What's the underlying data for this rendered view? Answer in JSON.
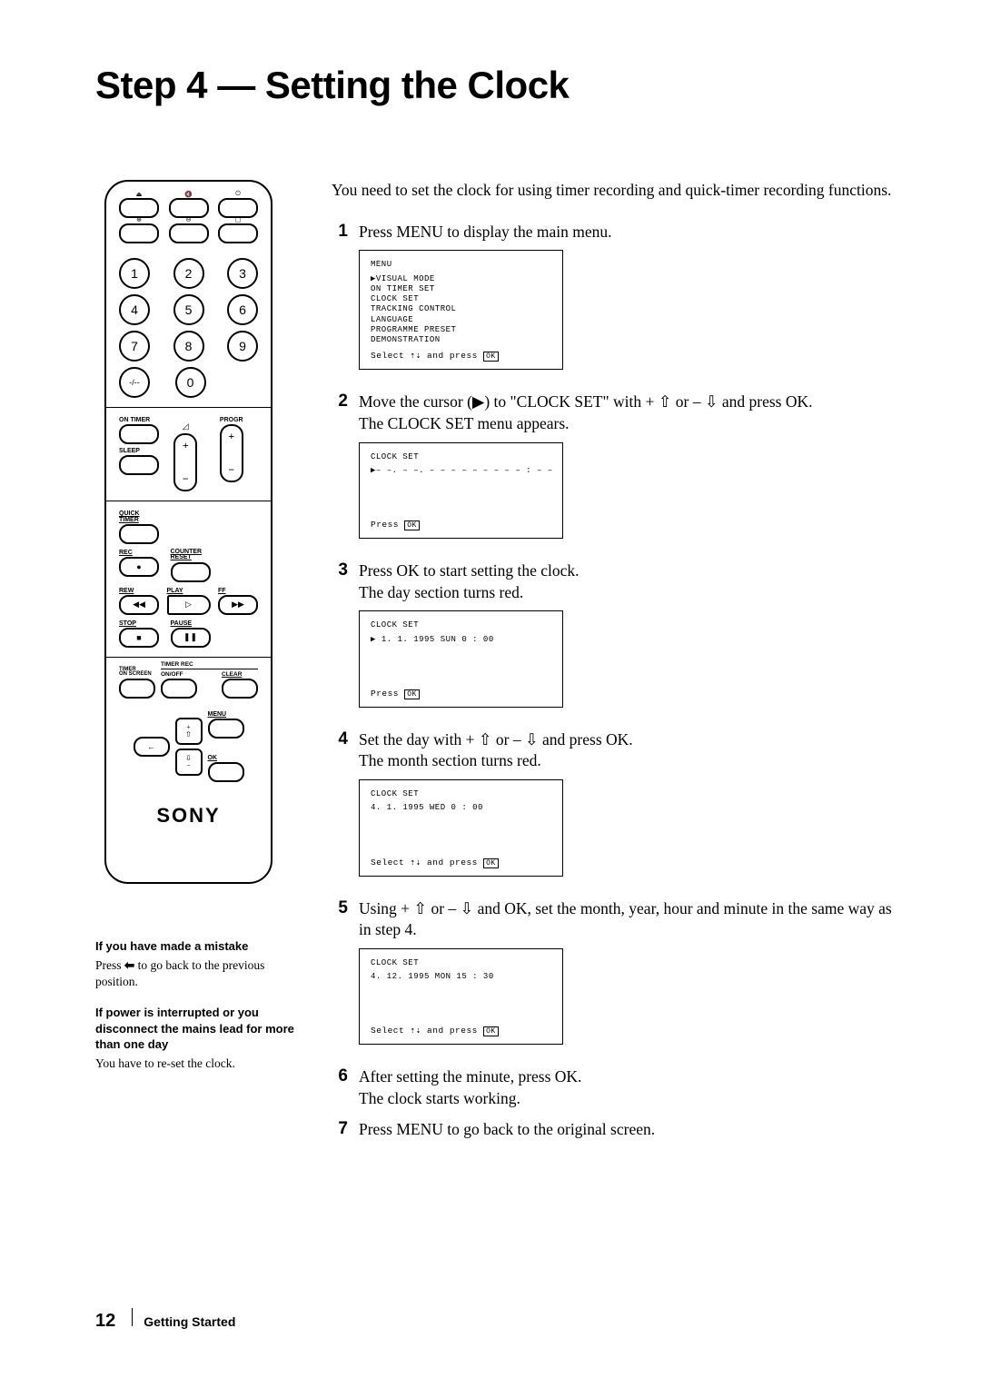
{
  "title": "Step 4 — Setting the Clock",
  "intro": "You need to set the clock for using timer recording and quick-timer recording functions.",
  "remote": {
    "numpad": [
      "1",
      "2",
      "3",
      "4",
      "5",
      "6",
      "7",
      "8",
      "9",
      "-/--",
      "0"
    ],
    "labels": {
      "on_timer": "ON TIMER",
      "progr": "PROGR",
      "sleep": "SLEEP",
      "quick_timer": "QUICK\nTIMER",
      "counter_reset": "COUNTER\nRESET",
      "rec": "REC",
      "rew": "REW",
      "play": "PLAY",
      "ff": "FF",
      "stop": "STOP",
      "pause": "PAUSE",
      "timer_onscreen": "TIMER\nON SCREEN",
      "timer_rec": "TIMER REC",
      "onoff": "ON/OFF",
      "clear": "CLEAR",
      "menu": "MENU",
      "ok": "OK"
    },
    "brand": "SONY"
  },
  "steps": [
    {
      "num": "1",
      "text": "Press MENU to display the main menu.",
      "screen": {
        "header": "MENU",
        "lines": [
          "▶VISUAL MODE",
          "  ON TIMER SET",
          "  CLOCK SET",
          "  TRACKING CONTROL",
          "  LANGUAGE",
          "  PROGRAMME PRESET",
          "  DEMONSTRATION"
        ],
        "footer": "Select ⇡⇣ and press OK",
        "footer_margin": 6
      }
    },
    {
      "num": "2",
      "text_parts": [
        "Move the cursor (▶) to \"CLOCK SET\" with + ⇧ or – ⇩ and press OK.",
        "The CLOCK SET menu appears."
      ],
      "screen": {
        "header": "CLOCK SET",
        "lines": [
          "▶– –. – –. – – – –  – – –  – – : – –"
        ],
        "footer": "Press OK",
        "footer_margin": 48
      }
    },
    {
      "num": "3",
      "text_parts": [
        "Press OK to start setting the clock.",
        "The day section turns red."
      ],
      "screen": {
        "header": "CLOCK SET",
        "lines": [
          "▶  1.  1. 1995 SUN   0 : 00"
        ],
        "footer": "Press OK",
        "footer_margin": 48
      }
    },
    {
      "num": "4",
      "text_parts": [
        "Set the day with + ⇧ or – ⇩ and press OK.",
        "The month section turns red."
      ],
      "screen": {
        "header": "CLOCK SET",
        "lines": [
          "    4.  1. 1995 WED   0 : 00"
        ],
        "footer": "Select ⇡⇣ and press OK",
        "footer_margin": 48
      }
    },
    {
      "num": "5",
      "text_parts": [
        "Using + ⇧ or – ⇩ and OK, set the month, year, hour and  minute in the same way as in step 4."
      ],
      "screen": {
        "header": "CLOCK SET",
        "lines": [
          "    4. 12. 1995 MON  15 : 30"
        ],
        "footer": "Select ⇡⇣ and press OK",
        "footer_margin": 48
      }
    },
    {
      "num": "6",
      "text_parts": [
        "After setting the minute, press OK.",
        "The clock starts working."
      ]
    },
    {
      "num": "7",
      "text_parts": [
        "Press MENU to go back to the original screen."
      ]
    }
  ],
  "notes": {
    "n1_head": "If you have made a mistake",
    "n1_body_a": "Press ",
    "n1_body_b": " to go back to the previous position.",
    "n2_head": "If power is interrupted or you disconnect the mains lead for more than one day",
    "n2_body": "You have to re-set the clock."
  },
  "footer": {
    "page": "12",
    "section": "Getting Started"
  }
}
